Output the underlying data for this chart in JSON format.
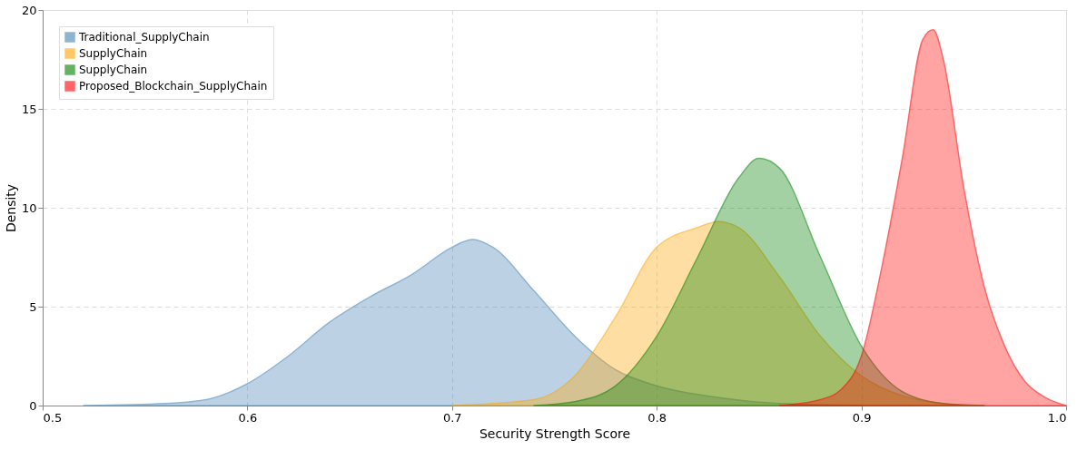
{
  "chart_data": {
    "type": "area",
    "xlabel": "Security Strength Score",
    "ylabel": "Density",
    "xlim": [
      0.5,
      1.0
    ],
    "xticks": [
      0.5,
      0.6,
      0.7,
      0.8,
      0.9,
      {
        "value": 1.0,
        "label": "1.0"
      }
    ],
    "ylim": [
      0,
      20
    ],
    "yticks": [
      0,
      5,
      10,
      15,
      20
    ],
    "grid": true,
    "legend": "top left",
    "series": [
      {
        "name": "Traditional_SupplyChain",
        "color": "#4682b4",
        "x": [
          0.52,
          0.56,
          0.58,
          0.6,
          0.62,
          0.64,
          0.66,
          0.68,
          0.7,
          0.71,
          0.72,
          0.74,
          0.76,
          0.78,
          0.8,
          0.83,
          0.86,
          0.9
        ],
        "values": [
          0,
          0.1,
          0.3,
          1.1,
          2.5,
          4.2,
          5.5,
          6.6,
          8.0,
          8.4,
          8.0,
          5.8,
          3.5,
          1.8,
          1.0,
          0.4,
          0.1,
          0
        ]
      },
      {
        "name": "SupplyChain",
        "color": "#ffa500",
        "x": [
          0.7,
          0.74,
          0.76,
          0.78,
          0.8,
          0.82,
          0.83,
          0.84,
          0.86,
          0.88,
          0.9,
          0.92,
          0.95
        ],
        "values": [
          0,
          0.3,
          1.5,
          4.5,
          8.0,
          9.0,
          9.3,
          9.0,
          6.5,
          3.5,
          1.5,
          0.5,
          0
        ]
      },
      {
        "name": "SupplyChain",
        "color": "#008000",
        "x": [
          0.74,
          0.76,
          0.78,
          0.8,
          0.82,
          0.84,
          0.85,
          0.86,
          0.88,
          0.9,
          0.92,
          0.94,
          0.96
        ],
        "values": [
          0,
          0.2,
          1.0,
          3.5,
          7.5,
          11.5,
          12.5,
          12.0,
          7.5,
          3.0,
          0.7,
          0.1,
          0
        ]
      },
      {
        "name": "Proposed_Blockchain_SupplyChain",
        "color": "#ff0000",
        "x": [
          0.86,
          0.88,
          0.89,
          0.9,
          0.91,
          0.92,
          0.93,
          0.935,
          0.94,
          0.95,
          0.96,
          0.97,
          0.98,
          0.99,
          1.0
        ],
        "values": [
          0,
          0.3,
          0.8,
          2.5,
          7.0,
          12.5,
          18.5,
          19.0,
          17.5,
          11.0,
          6.0,
          3.0,
          1.2,
          0.4,
          0
        ]
      }
    ]
  }
}
